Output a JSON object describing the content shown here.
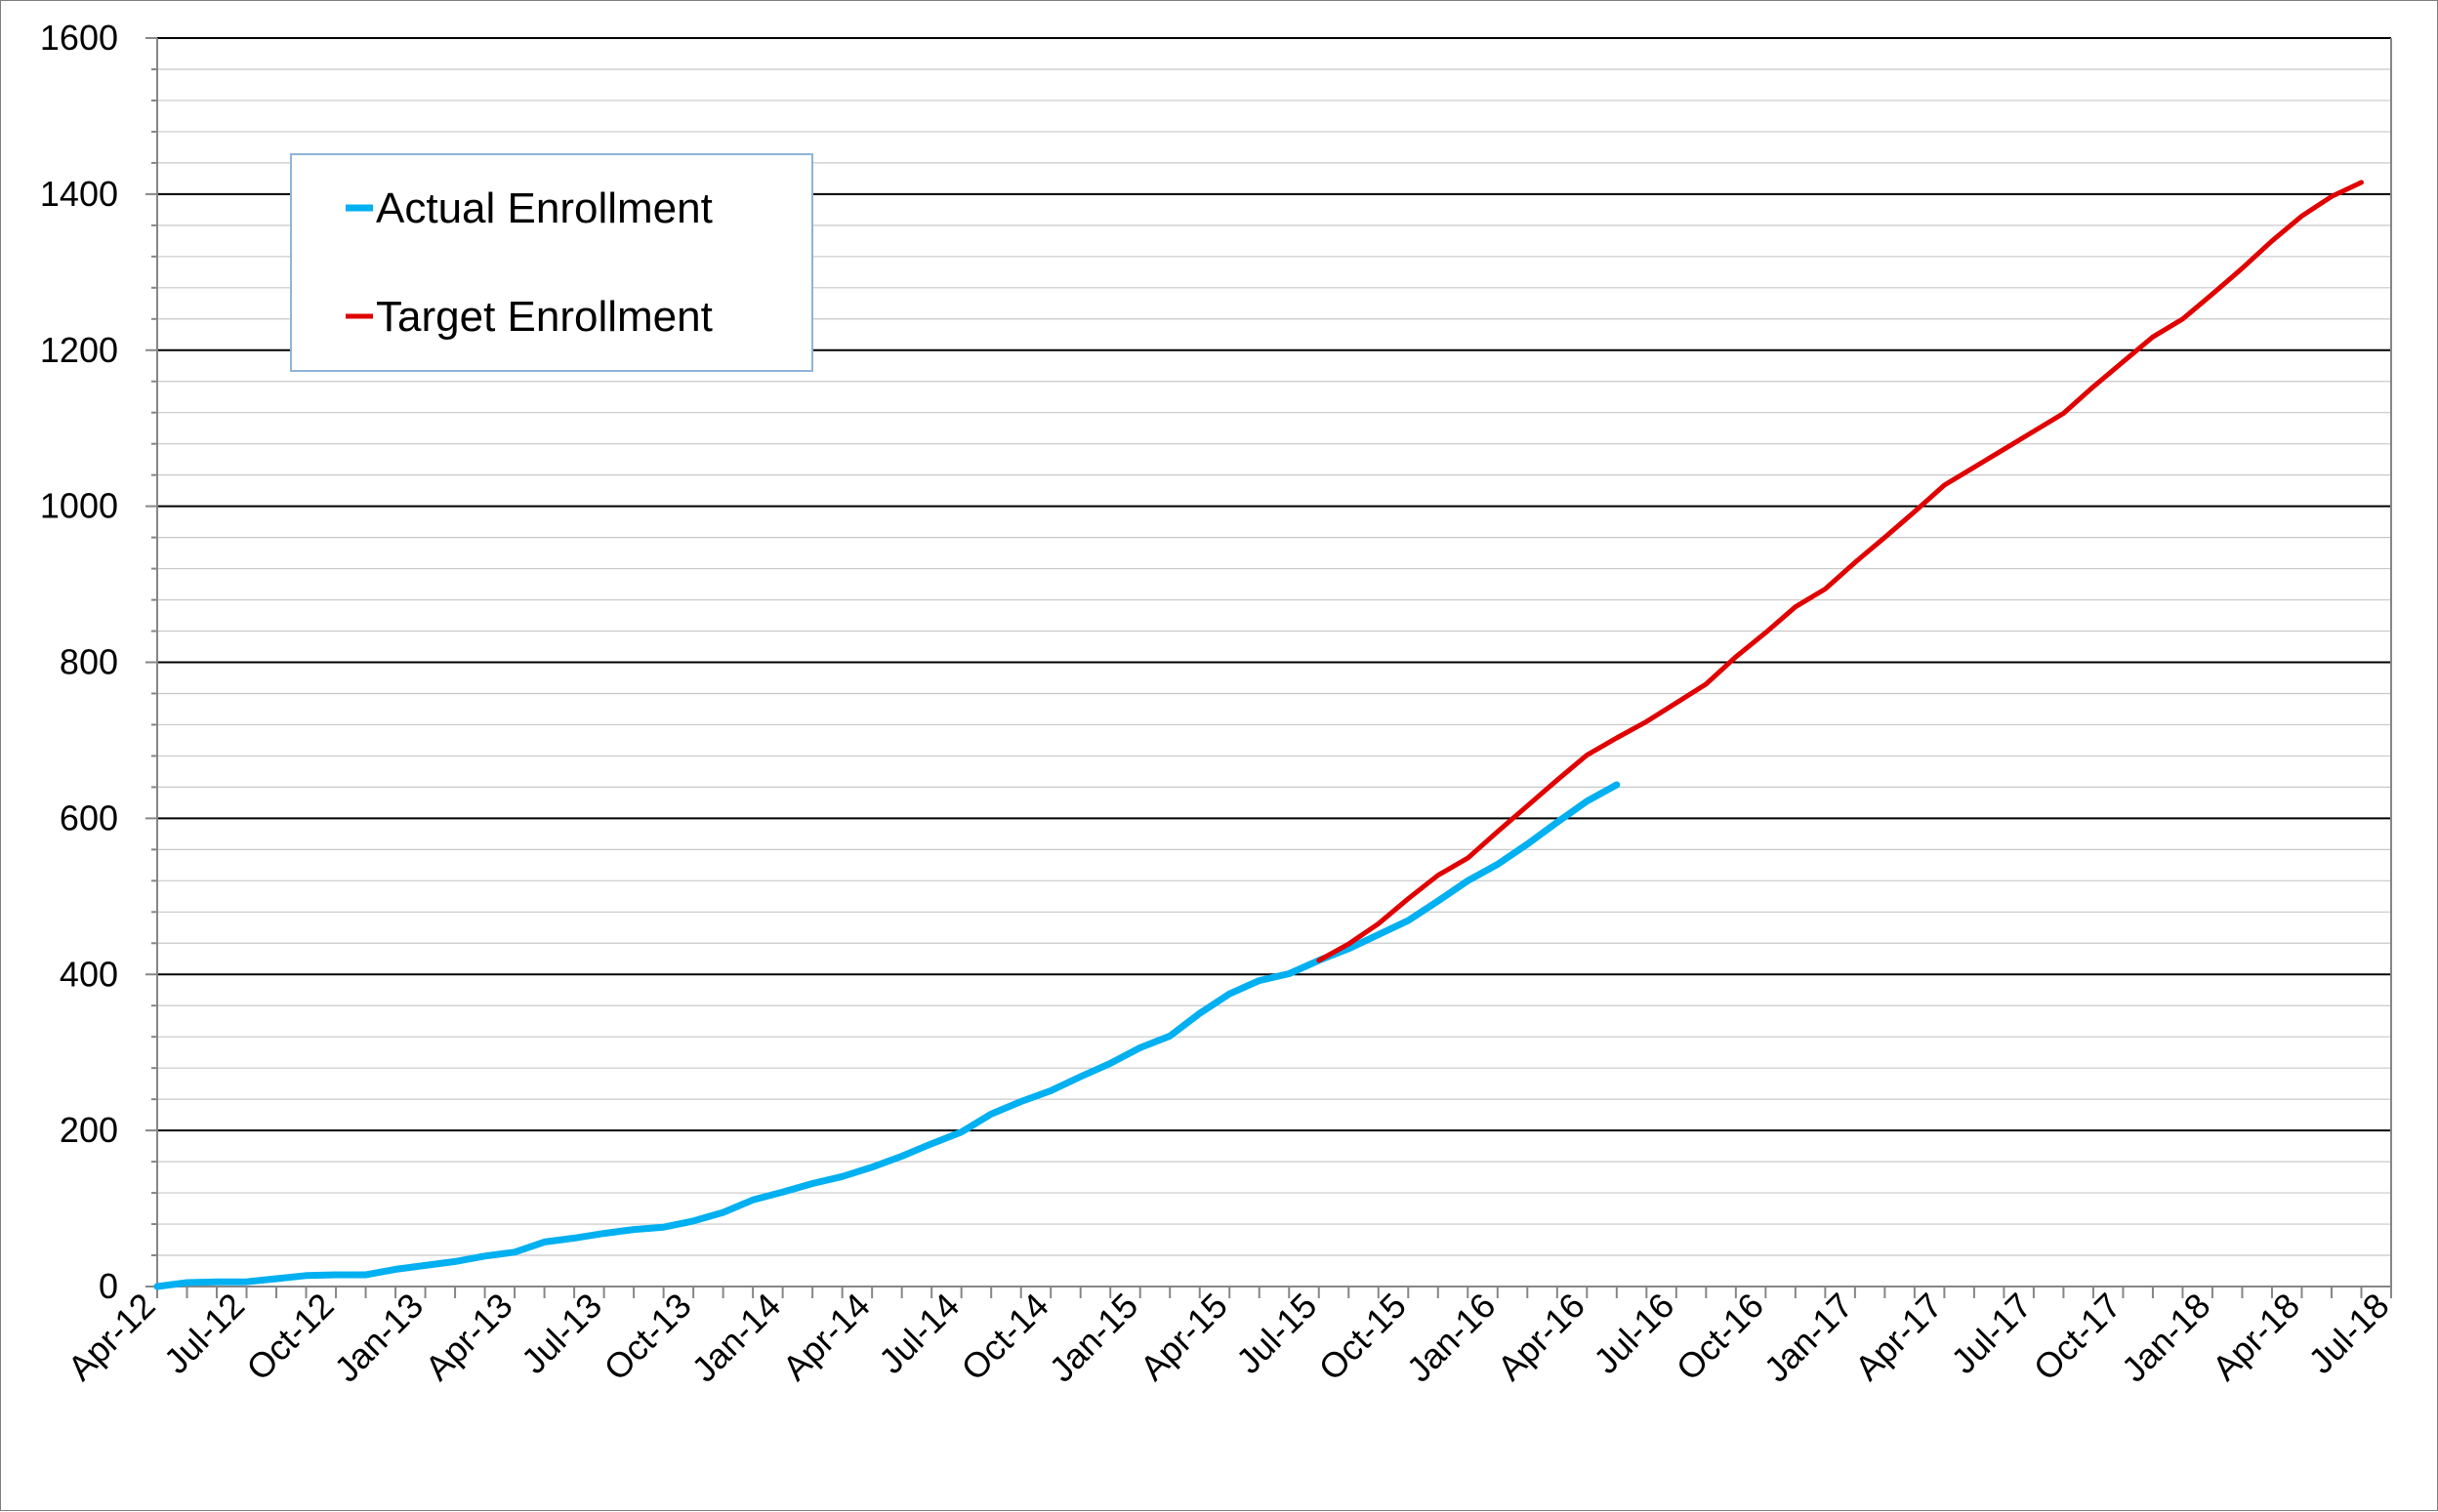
{
  "chart_data": {
    "type": "line",
    "title": "",
    "xlabel": "",
    "ylabel": "",
    "ylim": [
      0,
      1600
    ],
    "yticks": [
      0,
      200,
      400,
      600,
      800,
      1000,
      1200,
      1400,
      1600
    ],
    "y_minor_step": 40,
    "xlim": [
      "2012-04",
      "2018-07"
    ],
    "xtick_step_months": 3,
    "xtick_labels": [
      "Apr-12",
      "Jul-12",
      "Oct-12",
      "Jan-13",
      "Apr-13",
      "Jul-13",
      "Oct-13",
      "Jan-14",
      "Apr-14",
      "Jul-14",
      "Oct-14",
      "Jan-15",
      "Apr-15",
      "Jul-15",
      "Oct-15",
      "Jan-16",
      "Apr-16",
      "Jul-16",
      "Oct-16",
      "Jan-17",
      "Apr-17",
      "Jul-17",
      "Oct-17",
      "Jan-18",
      "Apr-18",
      "Jul-18"
    ],
    "grid": true,
    "legend_position": "top-left",
    "series": [
      {
        "name": "Actual Enrollment",
        "color": "#00B0F0",
        "points": [
          [
            "2012-04",
            0
          ],
          [
            "2012-05",
            5
          ],
          [
            "2012-06",
            6
          ],
          [
            "2012-07",
            6
          ],
          [
            "2012-08",
            10
          ],
          [
            "2012-09",
            14
          ],
          [
            "2012-10",
            15
          ],
          [
            "2012-11",
            15
          ],
          [
            "2012-12",
            22
          ],
          [
            "2013-01",
            27
          ],
          [
            "2013-02",
            32
          ],
          [
            "2013-03",
            39
          ],
          [
            "2013-04",
            44
          ],
          [
            "2013-05",
            57
          ],
          [
            "2013-06",
            62
          ],
          [
            "2013-07",
            68
          ],
          [
            "2013-08",
            73
          ],
          [
            "2013-09",
            76
          ],
          [
            "2013-10",
            84
          ],
          [
            "2013-11",
            95
          ],
          [
            "2013-12",
            111
          ],
          [
            "2014-01",
            121
          ],
          [
            "2014-02",
            132
          ],
          [
            "2014-03",
            141
          ],
          [
            "2014-04",
            153
          ],
          [
            "2014-05",
            167
          ],
          [
            "2014-06",
            183
          ],
          [
            "2014-07",
            198
          ],
          [
            "2014-08",
            221
          ],
          [
            "2014-09",
            237
          ],
          [
            "2014-10",
            251
          ],
          [
            "2014-11",
            269
          ],
          [
            "2014-12",
            286
          ],
          [
            "2015-01",
            306
          ],
          [
            "2015-02",
            321
          ],
          [
            "2015-03",
            350
          ],
          [
            "2015-04",
            375
          ],
          [
            "2015-05",
            392
          ],
          [
            "2015-06",
            401
          ],
          [
            "2015-07",
            418
          ],
          [
            "2015-08",
            433
          ],
          [
            "2015-09",
            451
          ],
          [
            "2015-10",
            469
          ],
          [
            "2015-11",
            494
          ],
          [
            "2015-12",
            520
          ],
          [
            "2016-01",
            541
          ],
          [
            "2016-02",
            567
          ],
          [
            "2016-03",
            595
          ],
          [
            "2016-04",
            622
          ],
          [
            "2016-05",
            643
          ]
        ]
      },
      {
        "name": "Target Enrollment",
        "color": "#E00000",
        "points": [
          [
            "2015-07",
            418
          ],
          [
            "2015-08",
            439
          ],
          [
            "2015-09",
            465
          ],
          [
            "2015-10",
            497
          ],
          [
            "2015-11",
            527
          ],
          [
            "2015-12",
            549
          ],
          [
            "2016-01",
            583
          ],
          [
            "2016-02",
            616
          ],
          [
            "2016-03",
            649
          ],
          [
            "2016-04",
            681
          ],
          [
            "2016-05",
            703
          ],
          [
            "2016-06",
            724
          ],
          [
            "2016-07",
            748
          ],
          [
            "2016-08",
            772
          ],
          [
            "2016-09",
            807
          ],
          [
            "2016-10",
            838
          ],
          [
            "2016-11",
            871
          ],
          [
            "2016-12",
            894
          ],
          [
            "2017-01",
            928
          ],
          [
            "2017-02",
            960
          ],
          [
            "2017-03",
            993
          ],
          [
            "2017-04",
            1027
          ],
          [
            "2017-05",
            1050
          ],
          [
            "2017-06",
            1073
          ],
          [
            "2017-07",
            1096
          ],
          [
            "2017-08",
            1119
          ],
          [
            "2017-09",
            1153
          ],
          [
            "2017-10",
            1185
          ],
          [
            "2017-11",
            1217
          ],
          [
            "2017-12",
            1240
          ],
          [
            "2018-01",
            1272
          ],
          [
            "2018-02",
            1305
          ],
          [
            "2018-03",
            1340
          ],
          [
            "2018-04",
            1372
          ],
          [
            "2018-05",
            1397
          ],
          [
            "2018-06",
            1415
          ]
        ]
      }
    ]
  }
}
